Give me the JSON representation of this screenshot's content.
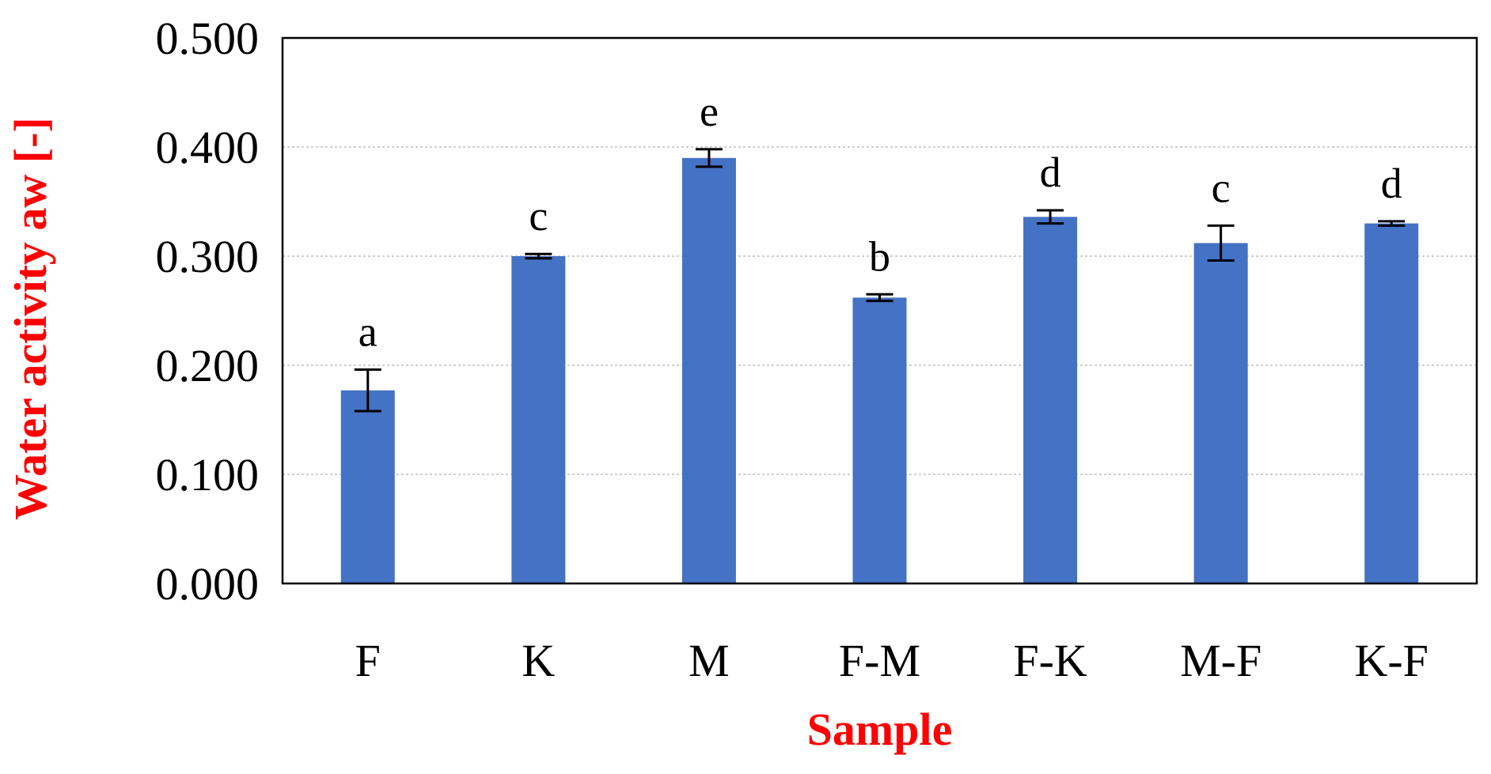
{
  "chart_data": {
    "type": "bar",
    "title": "",
    "xlabel": "Sample",
    "ylabel": "Water activity aw [-]",
    "categories": [
      "F",
      "K",
      "M",
      "F-M",
      "F-K",
      "M-F",
      "K-F"
    ],
    "values": [
      0.177,
      0.3,
      0.39,
      0.262,
      0.336,
      0.312,
      0.33
    ],
    "errors": [
      0.019,
      0.002,
      0.008,
      0.003,
      0.006,
      0.016,
      0.002
    ],
    "significance_letters": [
      "a",
      "c",
      "e",
      "b",
      "d",
      "c",
      "d"
    ],
    "ylim": [
      0,
      0.5
    ],
    "yticks": [
      "0.000",
      "0.100",
      "0.200",
      "0.300",
      "0.400",
      "0.500"
    ],
    "grid": true,
    "legend": "none",
    "colors": {
      "bar": "#4472C4",
      "axis_label": "#FF0000",
      "gridline": "#BFBFBF",
      "frame": "#000000"
    }
  }
}
